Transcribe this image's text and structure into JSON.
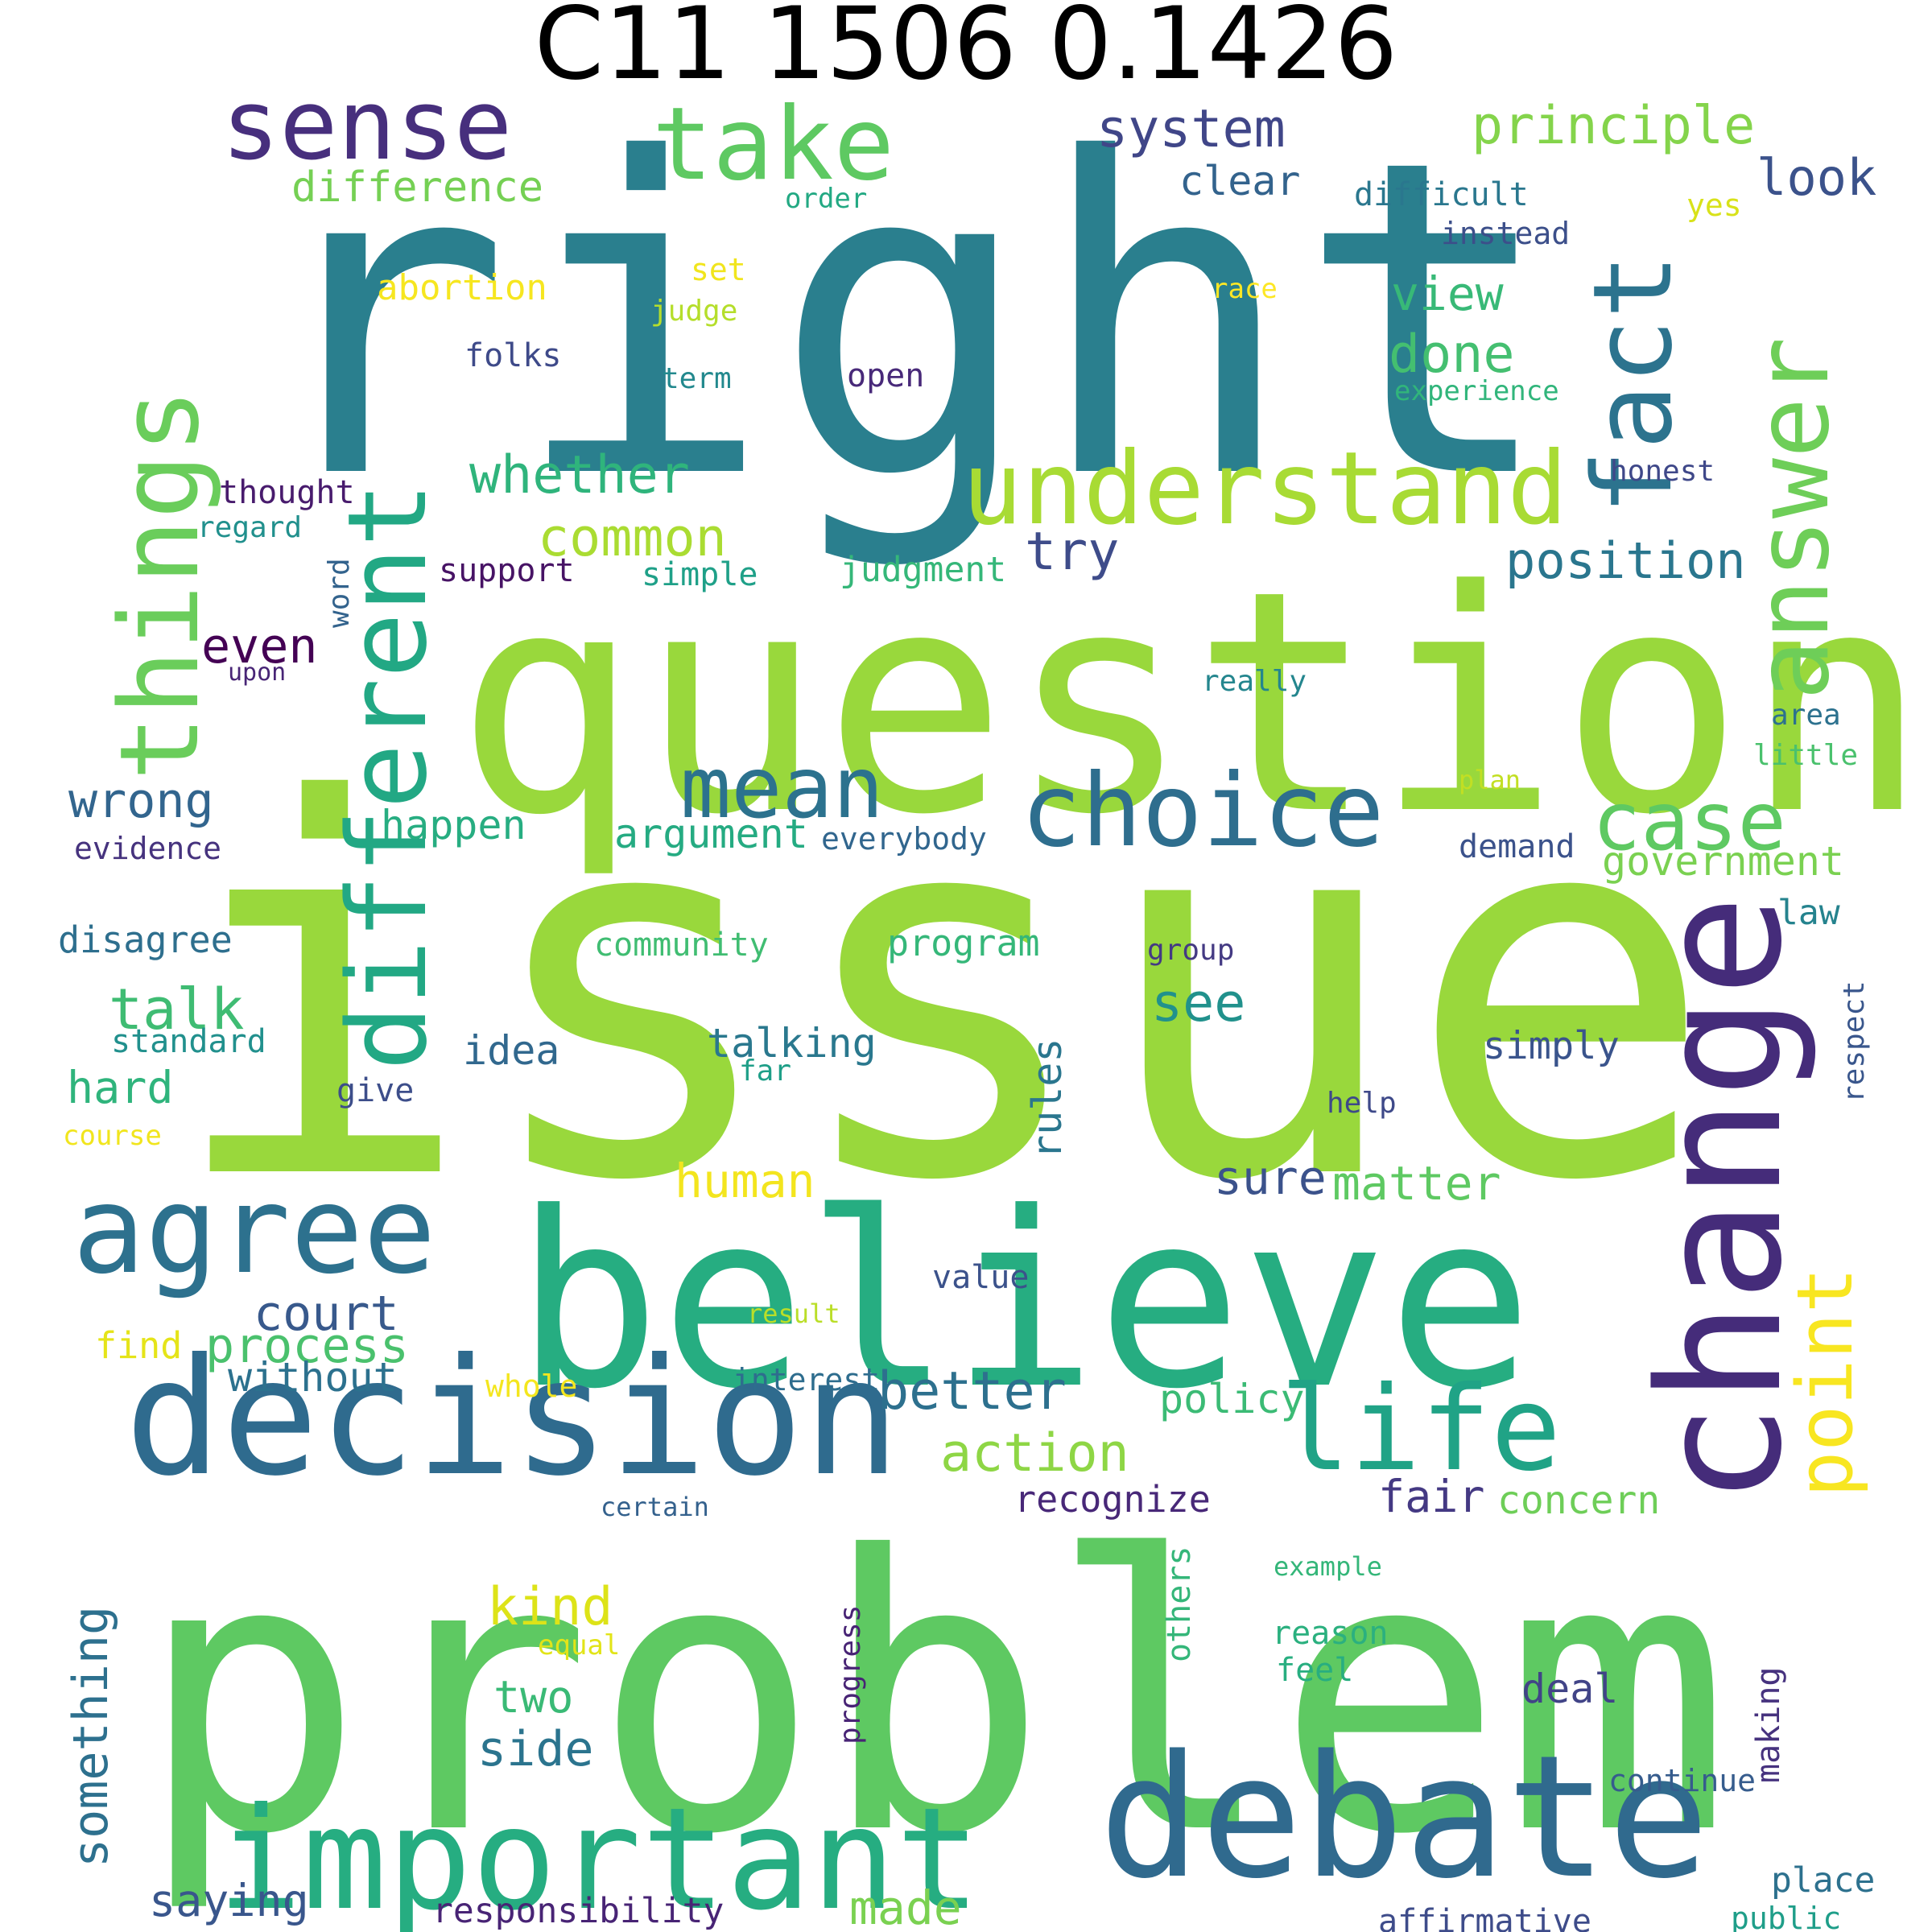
{
  "title": "C11 1506 0.1426",
  "words": [
    {
      "text": "right",
      "color": "#2A7F8E"
    },
    {
      "text": "issue",
      "color": "#99D83C"
    },
    {
      "text": "question",
      "color": "#99D83C"
    },
    {
      "text": "problem",
      "color": "#5EC962"
    },
    {
      "text": "believe",
      "color": "#26AD81"
    },
    {
      "text": "change",
      "color": "#452C7A"
    },
    {
      "text": "decision",
      "color": "#2F6B8E"
    },
    {
      "text": "debate",
      "color": "#306A8E"
    },
    {
      "text": "important",
      "color": "#26AD81"
    },
    {
      "text": "things",
      "color": "#6ACD5B"
    },
    {
      "text": "different",
      "color": "#22A884"
    },
    {
      "text": "fact",
      "color": "#2C738E"
    },
    {
      "text": "answer",
      "color": "#6ECE58"
    },
    {
      "text": "understand",
      "color": "#A8DB34"
    },
    {
      "text": "take",
      "color": "#5EC962"
    },
    {
      "text": "sense",
      "color": "#472F7D"
    },
    {
      "text": "agree",
      "color": "#2D718E"
    },
    {
      "text": "life",
      "color": "#20A386"
    },
    {
      "text": "choice",
      "color": "#2E6E8E"
    },
    {
      "text": "mean",
      "color": "#2C728E"
    },
    {
      "text": "case",
      "color": "#5EC962"
    },
    {
      "text": "point",
      "color": "#F8E621"
    },
    {
      "text": "system",
      "color": "#404688"
    },
    {
      "text": "principle",
      "color": "#84D44B"
    },
    {
      "text": "difference",
      "color": "#75D054"
    },
    {
      "text": "look",
      "color": "#3B528B"
    },
    {
      "text": "clear",
      "color": "#33638D"
    },
    {
      "text": "difficult",
      "color": "#2A778E"
    },
    {
      "text": "yes",
      "color": "#D8E219"
    },
    {
      "text": "order",
      "color": "#23A983"
    },
    {
      "text": "instead",
      "color": "#3C4F8A"
    },
    {
      "text": "set",
      "color": "#F1E51D"
    },
    {
      "text": "abortion",
      "color": "#F6E620"
    },
    {
      "text": "race",
      "color": "#FDE725"
    },
    {
      "text": "judge",
      "color": "#B5DE2B"
    },
    {
      "text": "view",
      "color": "#38B977"
    },
    {
      "text": "done",
      "color": "#44BF70"
    },
    {
      "text": "folks",
      "color": "#3E4A89"
    },
    {
      "text": "term",
      "color": "#23898E"
    },
    {
      "text": "open",
      "color": "#482979"
    },
    {
      "text": "experience",
      "color": "#31B57B"
    },
    {
      "text": "whether",
      "color": "#2FB47C"
    },
    {
      "text": "thought",
      "color": "#481B6D"
    },
    {
      "text": "honest",
      "color": "#3F4889"
    },
    {
      "text": "regard",
      "color": "#21908D"
    },
    {
      "text": "common",
      "color": "#AADC32"
    },
    {
      "text": "try",
      "color": "#3E4C8A"
    },
    {
      "text": "position",
      "color": "#2A768E"
    },
    {
      "text": "word",
      "color": "#33638D"
    },
    {
      "text": "support",
      "color": "#471365"
    },
    {
      "text": "simple",
      "color": "#1FA088"
    },
    {
      "text": "judgment",
      "color": "#35B779"
    },
    {
      "text": "even",
      "color": "#440154"
    },
    {
      "text": "upon",
      "color": "#482576"
    },
    {
      "text": "really",
      "color": "#24868E"
    },
    {
      "text": "area",
      "color": "#2C718E"
    },
    {
      "text": "little",
      "color": "#4AC16D"
    },
    {
      "text": "plan",
      "color": "#C2DF23"
    },
    {
      "text": "wrong",
      "color": "#32658E"
    },
    {
      "text": "happen",
      "color": "#27AD81"
    },
    {
      "text": "argument",
      "color": "#25AB82"
    },
    {
      "text": "everybody",
      "color": "#31668E"
    },
    {
      "text": "evidence",
      "color": "#46337E"
    },
    {
      "text": "demand",
      "color": "#3B528B"
    },
    {
      "text": "government",
      "color": "#7AD151"
    },
    {
      "text": "law",
      "color": "#25838E"
    },
    {
      "text": "disagree",
      "color": "#2E6F8E"
    },
    {
      "text": "community",
      "color": "#40BD72"
    },
    {
      "text": "program",
      "color": "#35B779"
    },
    {
      "text": "group",
      "color": "#443A83"
    },
    {
      "text": "talk",
      "color": "#3FBC73"
    },
    {
      "text": "see",
      "color": "#21918C"
    },
    {
      "text": "rules",
      "color": "#2A768E"
    },
    {
      "text": "respect",
      "color": "#39568C"
    },
    {
      "text": "standard",
      "color": "#21908D"
    },
    {
      "text": "idea",
      "color": "#31688E"
    },
    {
      "text": "talking",
      "color": "#2A788E"
    },
    {
      "text": "simply",
      "color": "#3A548C"
    },
    {
      "text": "hard",
      "color": "#2FB47C"
    },
    {
      "text": "far",
      "color": "#1F9F88"
    },
    {
      "text": "give",
      "color": "#3D4E8A"
    },
    {
      "text": "help",
      "color": "#3E4989"
    },
    {
      "text": "course",
      "color": "#F1E51D"
    },
    {
      "text": "human",
      "color": "#F3E51E"
    },
    {
      "text": "sure",
      "color": "#3B528B"
    },
    {
      "text": "matter",
      "color": "#5EC962"
    },
    {
      "text": "court",
      "color": "#38598C"
    },
    {
      "text": "process",
      "color": "#4AC16D"
    },
    {
      "text": "find",
      "color": "#E5E419"
    },
    {
      "text": "value",
      "color": "#3B528B"
    },
    {
      "text": "result",
      "color": "#BADE28"
    },
    {
      "text": "without",
      "color": "#2C718E"
    },
    {
      "text": "whole",
      "color": "#F4E61E"
    },
    {
      "text": "interest",
      "color": "#2E6D8E"
    },
    {
      "text": "better",
      "color": "#2D708E"
    },
    {
      "text": "policy",
      "color": "#3BBB75"
    },
    {
      "text": "action",
      "color": "#8ED645"
    },
    {
      "text": "fair",
      "color": "#443983"
    },
    {
      "text": "recognize",
      "color": "#482878"
    },
    {
      "text": "concern",
      "color": "#6ECE58"
    },
    {
      "text": "certain",
      "color": "#34618D"
    },
    {
      "text": "example",
      "color": "#34B679"
    },
    {
      "text": "something",
      "color": "#2D708E"
    },
    {
      "text": "kind",
      "color": "#DDE318"
    },
    {
      "text": "equal",
      "color": "#E2E418"
    },
    {
      "text": "others",
      "color": "#34B679"
    },
    {
      "text": "progress",
      "color": "#482475"
    },
    {
      "text": "reason",
      "color": "#2BB07F"
    },
    {
      "text": "feel",
      "color": "#28AE80"
    },
    {
      "text": "two",
      "color": "#3ABA76"
    },
    {
      "text": "deal",
      "color": "#414487"
    },
    {
      "text": "side",
      "color": "#2B748E"
    },
    {
      "text": "making",
      "color": "#46327E"
    },
    {
      "text": "continue",
      "color": "#365C8D"
    },
    {
      "text": "saying",
      "color": "#39568C"
    },
    {
      "text": "responsibility",
      "color": "#482475"
    },
    {
      "text": "made",
      "color": "#7AD151"
    },
    {
      "text": "place",
      "color": "#2D718E"
    },
    {
      "text": "affirmative",
      "color": "#3E4C8A"
    },
    {
      "text": "public",
      "color": "#1F9E89"
    }
  ]
}
